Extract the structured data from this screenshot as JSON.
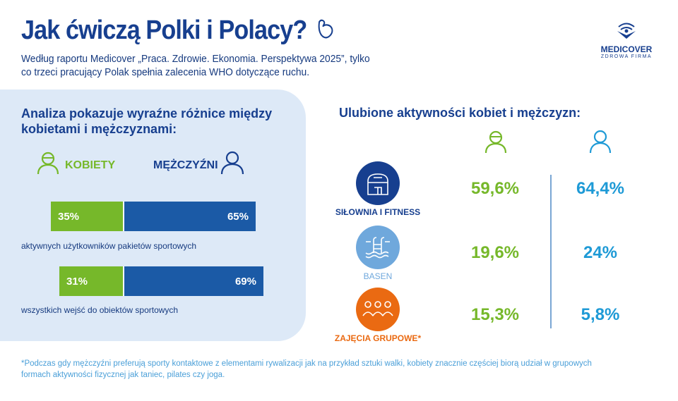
{
  "header": {
    "title": "Jak ćwiczą Polki i Polacy?",
    "subtitle_line1": "Według raportu Medicover „Praca. Zdrowie. Ekonomia. Perspektywa 2025”, tylko",
    "subtitle_line2": "co trzeci pracujący Polak spełnia zalecenia WHO dotyczące ruchu.",
    "title_icon": "flexed-arm-icon"
  },
  "logo": {
    "name": "MEDICOVER",
    "tagline": "ZDROWA FIRMA"
  },
  "left": {
    "heading_line1": "Analiza pokazuje wyraźne różnice między",
    "heading_line2": "kobietami i mężczyznami:",
    "legend_women": "KOBIETY",
    "legend_men": "MĘŻCZYŹNI"
  },
  "chart_data": {
    "type": "bar",
    "stacked": true,
    "orientation": "horizontal",
    "categories": [
      "aktywnych użytkowników pakietów sportowych",
      "wszystkich wejść do obiektów sportowych"
    ],
    "series": [
      {
        "name": "KOBIETY",
        "values": [
          35,
          31
        ],
        "labels": [
          "35%",
          "31%"
        ],
        "color": "#76b82a"
      },
      {
        "name": "MĘŻCZYŹNI",
        "values": [
          65,
          69
        ],
        "labels": [
          "65%",
          "69%"
        ],
        "color": "#1b5aa6"
      }
    ]
  },
  "right": {
    "heading": "Ulubione aktywności kobiet i mężczyzn:",
    "activities": [
      {
        "label": "SIŁOWNIA I FITNESS",
        "icon": "gym-building-icon",
        "color": "#173f8f",
        "women": "59,6%",
        "men": "64,4%"
      },
      {
        "label": "BASEN",
        "icon": "pool-ladder-icon",
        "color": "#6fa8dc",
        "women": "19,6%",
        "men": "24%"
      },
      {
        "label": "ZAJĘCIA GRUPOWE*",
        "icon": "group-people-icon",
        "color": "#ea6a12",
        "women": "15,3%",
        "men": "5,8%"
      }
    ]
  },
  "colors": {
    "women": "#76b82a",
    "men_bar": "#1b5aa6",
    "men_text": "#1e9ad6",
    "navy": "#173f8f"
  },
  "footer": {
    "line1": "*Podczas gdy mężczyźni preferują sporty kontaktowe z elementami rywalizacji jak na przykład sztuki walki, kobiety znacznie częściej biorą udział w grupowych",
    "line2": "formach aktywności fizycznej jak taniec, pilates czy joga."
  }
}
